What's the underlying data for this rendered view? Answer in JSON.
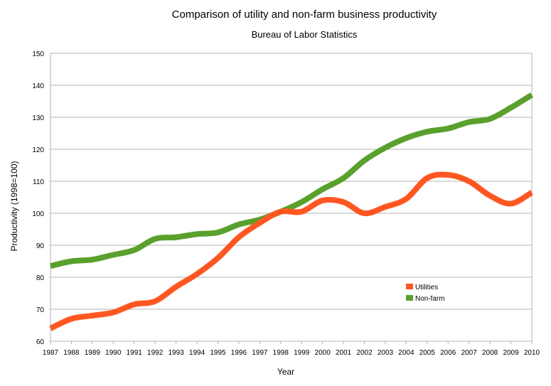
{
  "chart_data": {
    "type": "line",
    "title": "Comparison of utility and non-farm business productivity",
    "subtitle": "Bureau of Labor Statistics",
    "xlabel": "Year",
    "ylabel": "Productivity (1998=100)",
    "ylim": [
      60,
      150
    ],
    "yticks": [
      60,
      70,
      80,
      90,
      100,
      110,
      120,
      130,
      140,
      150
    ],
    "x": [
      "1987",
      "1988",
      "1989",
      "1990",
      "1991",
      "1992",
      "1993",
      "1994",
      "1995",
      "1996",
      "1997",
      "1998",
      "1999",
      "2000",
      "2001",
      "2002",
      "2003",
      "2004",
      "2005",
      "2006",
      "2007",
      "2008",
      "2009",
      "2010"
    ],
    "grid": true,
    "legend_position": "right-inside",
    "series": [
      {
        "name": "Utilities",
        "color": "#ff5722",
        "values": [
          64,
          67,
          68,
          69,
          71.5,
          72.5,
          77,
          81,
          86,
          92.5,
          97,
          100.5,
          100.5,
          104,
          103.5,
          100,
          102,
          104.5,
          111,
          112,
          110,
          105.5,
          103,
          106.5
        ]
      },
      {
        "name": "Non-farm",
        "color": "#5aa02c",
        "values": [
          83.5,
          85,
          85.5,
          87,
          88.5,
          92,
          92.5,
          93.5,
          94,
          96.5,
          98,
          100.5,
          103.5,
          107.5,
          111,
          116.5,
          120.5,
          123.5,
          125.5,
          126.5,
          128.5,
          129.5,
          133,
          137
        ]
      }
    ]
  }
}
